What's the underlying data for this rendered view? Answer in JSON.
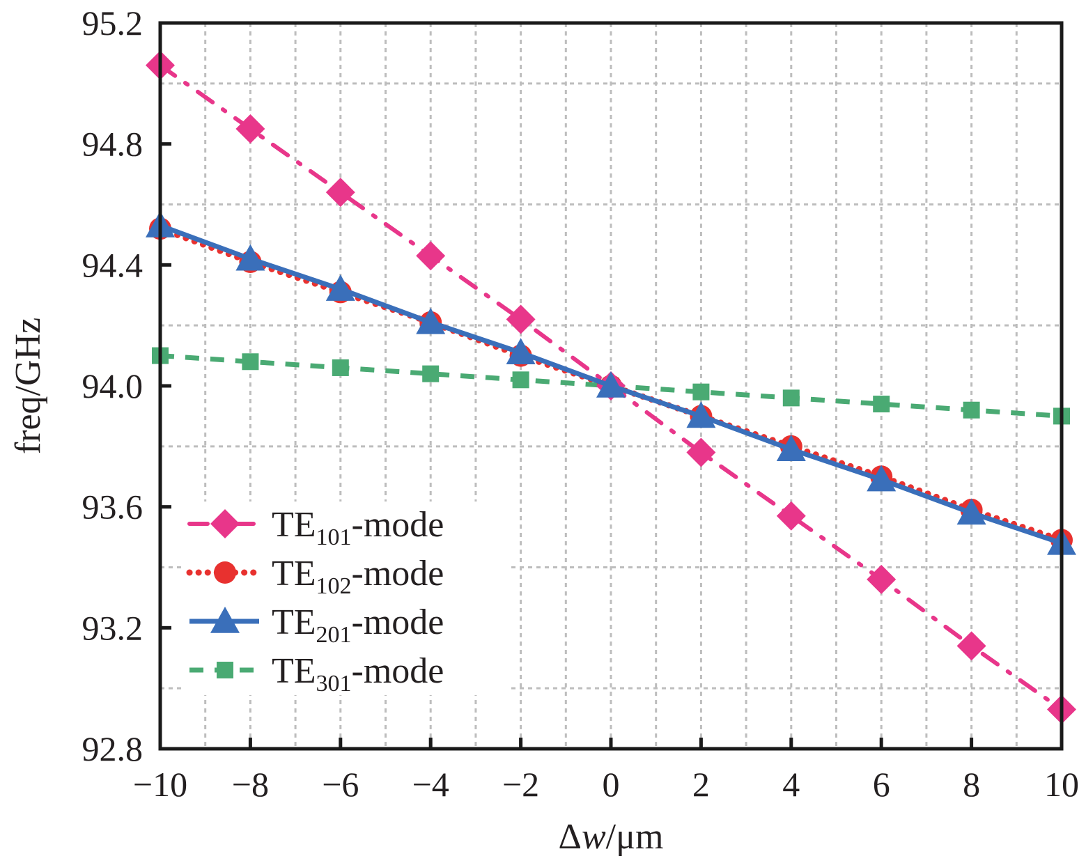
{
  "chart_data": {
    "type": "line",
    "title": "",
    "xlabel": "Δw/μm",
    "xlabel_parts": {
      "delta": "Δ",
      "var": "w",
      "unit": "/μm"
    },
    "ylabel": "freq/GHz",
    "xlim": [
      -10,
      10
    ],
    "ylim": [
      92.8,
      95.2
    ],
    "grid": true,
    "legend_position": "lower-left",
    "x": [
      -10,
      -8,
      -6,
      -4,
      -2,
      0,
      2,
      4,
      6,
      8,
      10
    ],
    "x_ticks": [
      -10,
      -8,
      -6,
      -4,
      -2,
      0,
      2,
      4,
      6,
      8,
      10
    ],
    "x_tick_labels": [
      "−10",
      "−8",
      "−6",
      "−4",
      "−2",
      "0",
      "2",
      "4",
      "6",
      "8",
      "10"
    ],
    "y_ticks": [
      92.8,
      93.2,
      93.6,
      94.0,
      94.4,
      94.8,
      95.2
    ],
    "y_tick_labels": [
      "92.8",
      "93.2",
      "93.6",
      "94.0",
      "94.4",
      "94.8",
      "95.2"
    ],
    "series": [
      {
        "name": "TE101-mode",
        "label_main": "TE",
        "label_sub": "101",
        "label_suffix": "-mode",
        "color": "#e8368a",
        "marker": "diamond",
        "linestyle": "dash-dot",
        "values": [
          95.06,
          94.85,
          94.64,
          94.43,
          94.22,
          94.0,
          93.78,
          93.57,
          93.36,
          93.14,
          92.93
        ]
      },
      {
        "name": "TE102-mode",
        "label_main": "TE",
        "label_sub": "102",
        "label_suffix": "-mode",
        "color": "#e8312f",
        "marker": "circle",
        "linestyle": "dotted",
        "values": [
          94.52,
          94.41,
          94.31,
          94.21,
          94.1,
          94.0,
          93.9,
          93.8,
          93.7,
          93.59,
          93.49
        ]
      },
      {
        "name": "TE201-mode",
        "label_main": "TE",
        "label_sub": "201",
        "label_suffix": "-mode",
        "color": "#3a6fba",
        "marker": "triangle",
        "linestyle": "solid",
        "values": [
          94.53,
          94.42,
          94.32,
          94.21,
          94.11,
          94.0,
          93.9,
          93.79,
          93.69,
          93.58,
          93.48
        ]
      },
      {
        "name": "TE301-mode",
        "label_main": "TE",
        "label_sub": "301",
        "label_suffix": "-mode",
        "color": "#4aaa73",
        "marker": "square",
        "linestyle": "dashed",
        "values": [
          94.1,
          94.08,
          94.06,
          94.04,
          94.02,
          94.0,
          93.98,
          93.96,
          93.94,
          93.92,
          93.9
        ]
      }
    ]
  }
}
